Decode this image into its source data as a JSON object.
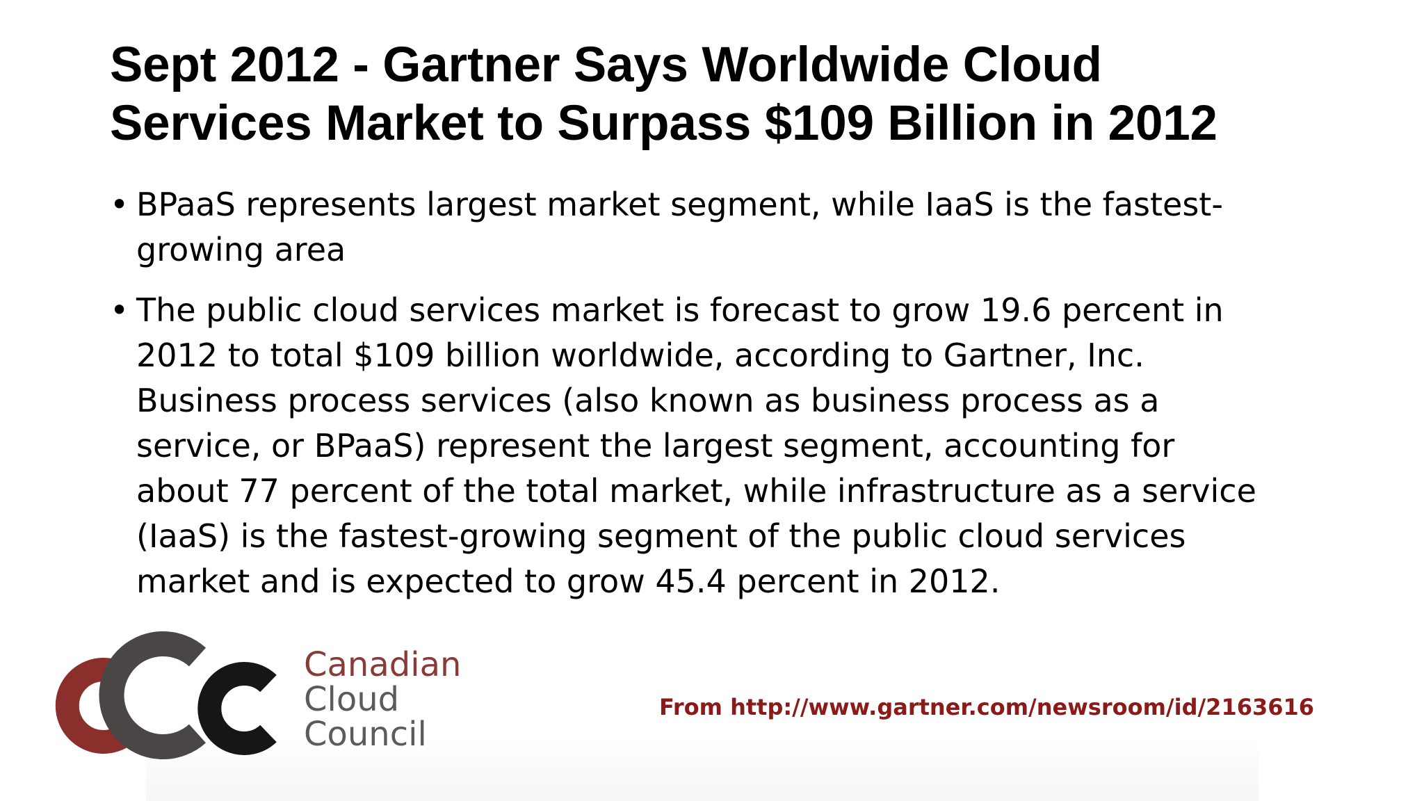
{
  "slide": {
    "title_lines": [
      "Sept 2012 - Gartner Says Worldwide Cloud",
      "Services Market to Surpass $109 Billion in 2012"
    ],
    "bullet_symbol": "•",
    "bullets": [
      {
        "lines": [
          "BPaaS represents largest market segment, while IaaS is the fastest-",
          "growing area"
        ]
      },
      {
        "lines": [
          "The public cloud services market is forecast to grow 19.6 percent in",
          "2012 to total $109 billion worldwide, according to Gartner, Inc.",
          "Business process services (also known as business process as a",
          "service, or BPaaS) represent the largest segment, accounting for",
          "about 77 percent of the total market, while infrastructure as a service",
          "(IaaS) is the fastest-growing segment of the public cloud services",
          "market and is expected to grow 45.4 percent in 2012."
        ]
      }
    ]
  },
  "logo": {
    "lines": [
      "Canadian",
      "Cloud",
      "Council"
    ],
    "colors": {
      "red": "#8b2f2c",
      "dark": "#1a1a1a",
      "grey": "#5e5a5a"
    },
    "icon": "ccc-logo-icon"
  },
  "source": {
    "text": "From http://www.gartner.com/newsroom/id/2163616",
    "color": "#8b1a1a"
  }
}
